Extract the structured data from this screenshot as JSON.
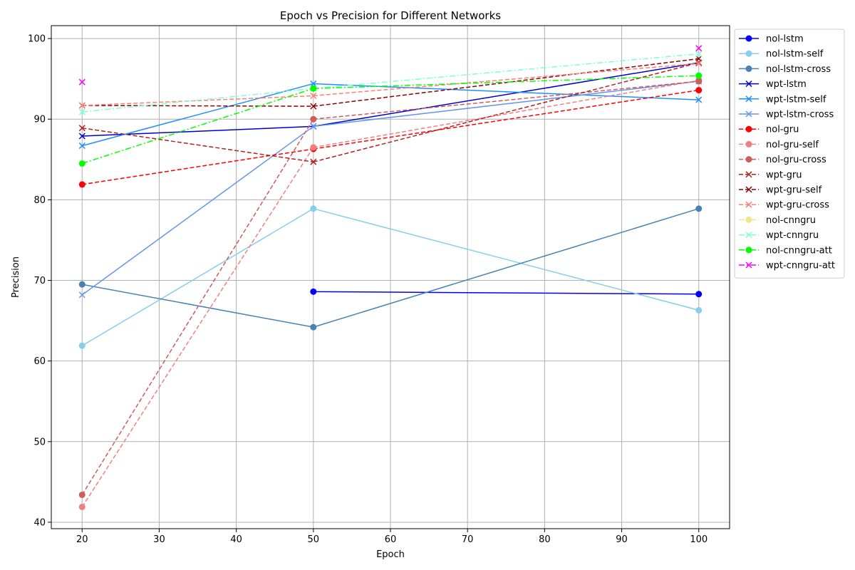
{
  "chart_data": {
    "type": "line",
    "title": "Epoch vs Precision for Different Networks",
    "xlabel": "Epoch",
    "ylabel": "Precision",
    "xlim": [
      16,
      104
    ],
    "ylim": [
      39.2,
      101.6
    ],
    "xticks": [
      20,
      30,
      40,
      50,
      60,
      70,
      80,
      90,
      100
    ],
    "yticks": [
      40,
      50,
      60,
      70,
      80,
      90,
      100
    ],
    "grid": true,
    "legend_position": "outside-right",
    "x": [
      20,
      50,
      100
    ],
    "series": [
      {
        "name": "nol-lstm",
        "color": "#0000ff",
        "dash": "solid",
        "marker": "o",
        "values": [
          null,
          68.6,
          68.3
        ]
      },
      {
        "name": "nol-lstm-self",
        "color": "#87ceeb",
        "dash": "solid",
        "marker": "o",
        "values": [
          61.9,
          78.9,
          66.3
        ]
      },
      {
        "name": "nol-lstm-cross",
        "color": "#4682b4",
        "dash": "solid",
        "marker": "o",
        "values": [
          69.5,
          64.2,
          78.9
        ]
      },
      {
        "name": "wpt-lstm",
        "color": "#0000cd",
        "dash": "solid",
        "marker": "x",
        "values": [
          87.9,
          89.1,
          97.0
        ]
      },
      {
        "name": "wpt-lstm-self",
        "color": "#1e90ff",
        "dash": "solid",
        "marker": "x",
        "values": [
          86.7,
          94.4,
          92.4
        ]
      },
      {
        "name": "wpt-lstm-cross",
        "color": "#6495ed",
        "dash": "solid",
        "marker": "x",
        "values": [
          68.2,
          89.1,
          94.7
        ]
      },
      {
        "name": "nol-gru",
        "color": "#ff0000",
        "dash": "dashed",
        "marker": "o",
        "values": [
          81.9,
          86.3,
          93.6
        ]
      },
      {
        "name": "nol-gru-self",
        "color": "#f08080",
        "dash": "dashed",
        "marker": "o",
        "values": [
          41.9,
          86.5,
          94.8
        ]
      },
      {
        "name": "nol-gru-cross",
        "color": "#cd5c5c",
        "dash": "dashed",
        "marker": "o",
        "values": [
          43.4,
          90.0,
          94.7
        ]
      },
      {
        "name": "wpt-gru",
        "color": "#b22222",
        "dash": "dashed",
        "marker": "x",
        "values": [
          88.9,
          84.7,
          97.0
        ]
      },
      {
        "name": "wpt-gru-self",
        "color": "#8b0000",
        "dash": "dashed",
        "marker": "x",
        "values": [
          91.7,
          91.6,
          97.5
        ]
      },
      {
        "name": "wpt-gru-cross",
        "color": "#fa8072",
        "dash": "dashed",
        "marker": "x",
        "values": [
          91.7,
          92.9,
          96.9
        ]
      },
      {
        "name": "nol-cnngru",
        "color": "#f0e68c",
        "dash": "dashdot",
        "marker": "o",
        "values": [
          null,
          null,
          null
        ]
      },
      {
        "name": "wpt-cnngru",
        "color": "#7fffd4",
        "dash": "dashdot",
        "marker": "x",
        "values": [
          90.9,
          93.8,
          98.1
        ]
      },
      {
        "name": "nol-cnngru-att",
        "color": "#00ff00",
        "dash": "dashdot",
        "marker": "o",
        "values": [
          84.5,
          93.8,
          95.4
        ]
      },
      {
        "name": "wpt-cnngru-att",
        "color": "#ff00ff",
        "dash": "dashdot",
        "marker": "x",
        "values": [
          94.6,
          null,
          98.8
        ]
      }
    ]
  }
}
